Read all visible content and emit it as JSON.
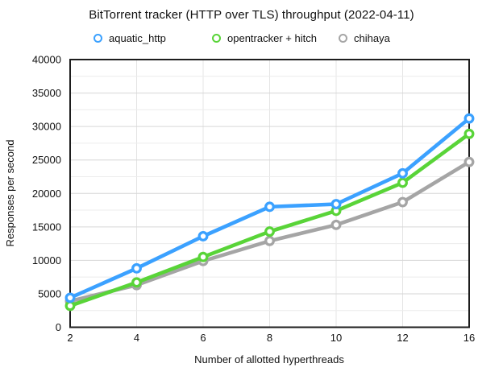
{
  "chart_data": {
    "type": "line",
    "title": "BitTorrent tracker (HTTP over TLS) throughput (2022-04-11)",
    "xlabel": "Number of allotted hyperthreads",
    "ylabel": "Responses per second",
    "categories": [
      2,
      4,
      6,
      8,
      10,
      12,
      16
    ],
    "x_tick_labels": [
      "2",
      "4",
      "6",
      "8",
      "10",
      "12",
      "16"
    ],
    "ylim": [
      0,
      40000
    ],
    "y_major_step": 5000,
    "y_minor_step": 2500,
    "grid": {
      "horizontal_major": true,
      "horizontal_minor": true,
      "vertical_at_categories": true
    },
    "legend_position": "top",
    "axis_note": "x axis is categorical: equal spacing between 2,4,6,8,10,12,16",
    "series": [
      {
        "name": "aquatic_http",
        "color": "#3BA1FF",
        "values": [
          4400,
          8800,
          13600,
          18000,
          18400,
          23000,
          31200
        ]
      },
      {
        "name": "opentracker + hitch",
        "color": "#59D438",
        "values": [
          3200,
          6700,
          10500,
          14300,
          17400,
          21600,
          28900
        ]
      },
      {
        "name": "chihaya",
        "color": "#A5A5A5",
        "values": [
          3900,
          6300,
          9900,
          12900,
          15300,
          18700,
          24700
        ]
      }
    ]
  },
  "colors": {
    "background": "#ffffff",
    "text": "#111111",
    "border": "#1d1d1d",
    "grid_major": "#d6d6d6",
    "grid_minor": "#ececec",
    "grid_vertical": "#e4e4e4",
    "marker_fill": "#ffffff"
  }
}
